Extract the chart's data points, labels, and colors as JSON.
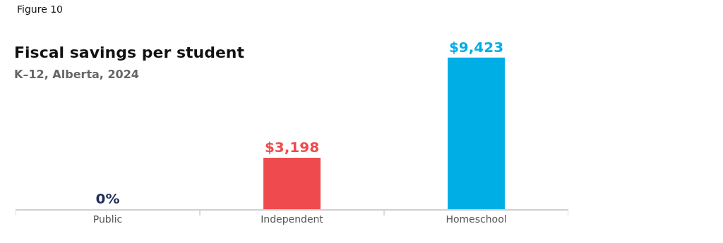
{
  "chart_data": {
    "type": "bar",
    "title": "Fiscal savings per student",
    "subtitle": "K–12, Alberta, 2024",
    "annotations": [
      "Figure 10"
    ],
    "categories": [
      "Public",
      "Independent",
      "Homeschool"
    ],
    "values": [
      0,
      3198,
      9423
    ],
    "value_labels": [
      "0%",
      "$3,198",
      "$9,423"
    ],
    "colors": [
      "#1f2d5a",
      "#ef4b4f",
      "#00aee6"
    ]
  }
}
